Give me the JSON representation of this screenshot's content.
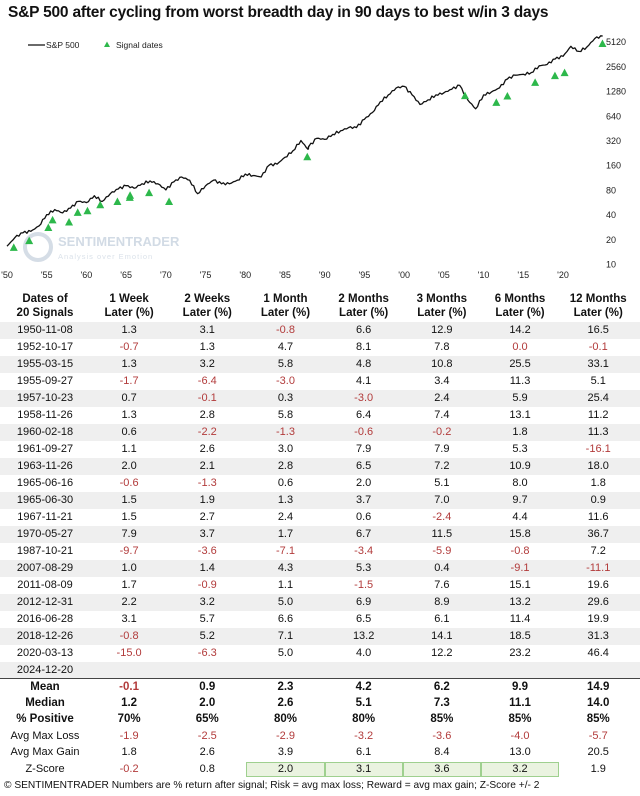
{
  "title": "S&P 500 after cycling from worst breadth day in 90 days to best w/in 3 days",
  "chart_data": {
    "type": "line",
    "title": "S&P 500 after cycling from worst breadth day in 90 days to best w/in 3 days",
    "y_scale": "log",
    "ylim": [
      10,
      6000
    ],
    "y_ticks": [
      "10",
      "20",
      "40",
      "80",
      "160",
      "320",
      "640",
      "1280",
      "2560",
      "5120"
    ],
    "x_ticks": [
      "'50",
      "'55",
      "'60",
      "'65",
      "'70",
      "'75",
      "'80",
      "'85",
      "'90",
      "'95",
      "'00",
      "'05",
      "'10",
      "'15",
      "'20"
    ],
    "x_range": [
      1950,
      2025
    ],
    "grid": false,
    "legend_position": "top-left",
    "watermark": {
      "brand": "SENTIMENTRADER",
      "tagline": "Analysis over Emotion"
    },
    "series": [
      {
        "name": "S&P 500",
        "color": "#111111",
        "x": [
          1950,
          1951,
          1952,
          1953,
          1954,
          1955,
          1956,
          1957,
          1958,
          1959,
          1960,
          1961,
          1962,
          1963,
          1964,
          1965,
          1966,
          1967,
          1968,
          1969,
          1970,
          1971,
          1972,
          1973,
          1974,
          1975,
          1976,
          1977,
          1978,
          1979,
          1980,
          1981,
          1982,
          1983,
          1984,
          1985,
          1986,
          1987,
          1987.9,
          1988,
          1989,
          1990,
          1991,
          1992,
          1993,
          1994,
          1995,
          1996,
          1997,
          1998,
          1999,
          2000,
          2001,
          2002,
          2003,
          2004,
          2005,
          2006,
          2007,
          2008,
          2009,
          2010,
          2011,
          2012,
          2013,
          2014,
          2015,
          2016,
          2017,
          2018,
          2019,
          2020,
          2021,
          2022,
          2023,
          2024,
          2025
        ],
        "y": [
          16.5,
          21,
          24,
          25,
          29,
          40,
          46,
          42,
          48,
          58,
          56,
          68,
          58,
          72,
          82,
          90,
          84,
          95,
          103,
          95,
          80,
          100,
          115,
          105,
          72,
          90,
          105,
          95,
          95,
          105,
          125,
          120,
          115,
          160,
          165,
          200,
          240,
          320,
          250,
          270,
          340,
          330,
          380,
          420,
          460,
          460,
          580,
          700,
          950,
          1150,
          1400,
          1460,
          1150,
          880,
          1000,
          1150,
          1220,
          1350,
          1500,
          1000,
          780,
          1150,
          1250,
          1400,
          1800,
          2000,
          2050,
          2150,
          2600,
          2700,
          3150,
          3400,
          4500,
          3900,
          4400,
          5600,
          6000
        ]
      },
      {
        "name": "Signal dates",
        "type": "scatter",
        "marker": "triangle",
        "color": "#2db84b",
        "x": [
          "1950-11-08",
          "1952-10-17",
          "1955-03-15",
          "1955-09-27",
          "1957-10-23",
          "1958-11-26",
          "1960-02-18",
          "1961-09-27",
          "1963-11-26",
          "1965-06-16",
          "1965-06-30",
          "1967-11-21",
          "1970-05-27",
          "1987-10-21",
          "2007-08-29",
          "2011-08-09",
          "2012-12-31",
          "2016-06-28",
          "2018-12-26",
          "2020-03-13",
          "2024-12-20"
        ],
        "y": [
          15.7,
          19,
          27.5,
          34,
          32,
          42,
          44,
          52,
          57,
          64,
          68,
          73,
          57,
          200,
          1110,
          920,
          1100,
          1610,
          1950,
          2120,
          4800
        ]
      }
    ]
  },
  "table": {
    "headers": [
      [
        "Dates of",
        "20 Signals"
      ],
      [
        "1 Week",
        "Later (%)"
      ],
      [
        "2 Weeks",
        "Later (%)"
      ],
      [
        "1 Month",
        "Later (%)"
      ],
      [
        "2 Months",
        "Later (%)"
      ],
      [
        "3 Months",
        "Later (%)"
      ],
      [
        "6 Months",
        "Later (%)"
      ],
      [
        "12 Months",
        "Later (%)"
      ]
    ],
    "rows": [
      [
        "1950-11-08",
        "1.3",
        "3.1",
        "-0.8",
        "6.6",
        "12.9",
        "14.2",
        "16.5"
      ],
      [
        "1952-10-17",
        "-0.7",
        "1.3",
        "4.7",
        "8.1",
        "7.8",
        "0.0",
        "-0.1"
      ],
      [
        "1955-03-15",
        "1.3",
        "3.2",
        "5.8",
        "4.8",
        "10.8",
        "25.5",
        "33.1"
      ],
      [
        "1955-09-27",
        "-1.7",
        "-6.4",
        "-3.0",
        "4.1",
        "3.4",
        "11.3",
        "5.1"
      ],
      [
        "1957-10-23",
        "0.7",
        "-0.1",
        "0.3",
        "-3.0",
        "2.4",
        "5.9",
        "25.4"
      ],
      [
        "1958-11-26",
        "1.3",
        "2.8",
        "5.8",
        "6.4",
        "7.4",
        "13.1",
        "11.2"
      ],
      [
        "1960-02-18",
        "0.6",
        "-2.2",
        "-1.3",
        "-0.6",
        "-0.2",
        "1.8",
        "11.3"
      ],
      [
        "1961-09-27",
        "1.1",
        "2.6",
        "3.0",
        "7.9",
        "7.9",
        "5.3",
        "-16.1"
      ],
      [
        "1963-11-26",
        "2.0",
        "2.1",
        "2.8",
        "6.5",
        "7.2",
        "10.9",
        "18.0"
      ],
      [
        "1965-06-16",
        "-0.6",
        "-1.3",
        "0.6",
        "2.0",
        "5.1",
        "8.0",
        "1.8"
      ],
      [
        "1965-06-30",
        "1.5",
        "1.9",
        "1.3",
        "3.7",
        "7.0",
        "9.7",
        "0.9"
      ],
      [
        "1967-11-21",
        "1.5",
        "2.7",
        "2.4",
        "0.6",
        "-2.4",
        "4.4",
        "11.6"
      ],
      [
        "1970-05-27",
        "7.9",
        "3.7",
        "1.7",
        "6.7",
        "11.5",
        "15.8",
        "36.7"
      ],
      [
        "1987-10-21",
        "-9.7",
        "-3.6",
        "-7.1",
        "-3.4",
        "-5.9",
        "-0.8",
        "7.2"
      ],
      [
        "2007-08-29",
        "1.0",
        "1.4",
        "4.3",
        "5.3",
        "0.4",
        "-9.1",
        "-11.1"
      ],
      [
        "2011-08-09",
        "1.7",
        "-0.9",
        "1.1",
        "-1.5",
        "7.6",
        "15.1",
        "19.6"
      ],
      [
        "2012-12-31",
        "2.2",
        "3.2",
        "5.0",
        "6.9",
        "8.9",
        "13.2",
        "29.6"
      ],
      [
        "2016-06-28",
        "3.1",
        "5.7",
        "6.6",
        "6.5",
        "6.1",
        "11.4",
        "19.9"
      ],
      [
        "2018-12-26",
        "-0.8",
        "5.2",
        "7.1",
        "13.2",
        "14.1",
        "18.5",
        "31.3"
      ],
      [
        "2020-03-13",
        "-15.0",
        "-6.3",
        "5.0",
        "4.0",
        "12.2",
        "23.2",
        "46.4"
      ],
      [
        "2024-12-20",
        "",
        "",
        "",
        "",
        "",
        "",
        ""
      ]
    ],
    "stats": [
      {
        "label": "Mean",
        "bold": true,
        "values": [
          "-0.1",
          "0.9",
          "2.3",
          "4.2",
          "6.2",
          "9.9",
          "14.9"
        ]
      },
      {
        "label": "Median",
        "bold": true,
        "values": [
          "1.2",
          "2.0",
          "2.6",
          "5.1",
          "7.3",
          "11.1",
          "14.0"
        ]
      },
      {
        "label": "% Positive",
        "bold": true,
        "values": [
          "70%",
          "65%",
          "80%",
          "80%",
          "85%",
          "85%",
          "85%"
        ]
      },
      {
        "label": "Avg Max Loss",
        "bold": false,
        "values": [
          "-1.9",
          "-2.5",
          "-2.9",
          "-3.2",
          "-3.6",
          "-4.0",
          "-5.7"
        ]
      },
      {
        "label": "Avg Max Gain",
        "bold": false,
        "values": [
          "1.8",
          "2.6",
          "3.9",
          "6.1",
          "8.4",
          "13.0",
          "20.5"
        ]
      },
      {
        "label": "Z-Score",
        "bold": false,
        "values": [
          "-0.2",
          "0.8",
          "2.0",
          "3.1",
          "3.6",
          "3.2",
          "1.9"
        ],
        "highlighted": [
          false,
          false,
          true,
          true,
          true,
          true,
          false
        ]
      }
    ],
    "negative_color": "#b23b3b",
    "highlight_color": "#eaf3e0"
  },
  "footer": "© SENTIMENTRADER  Numbers are % return after signal; Risk = avg max loss; Reward = avg max gain; Z-Score +/- 2"
}
